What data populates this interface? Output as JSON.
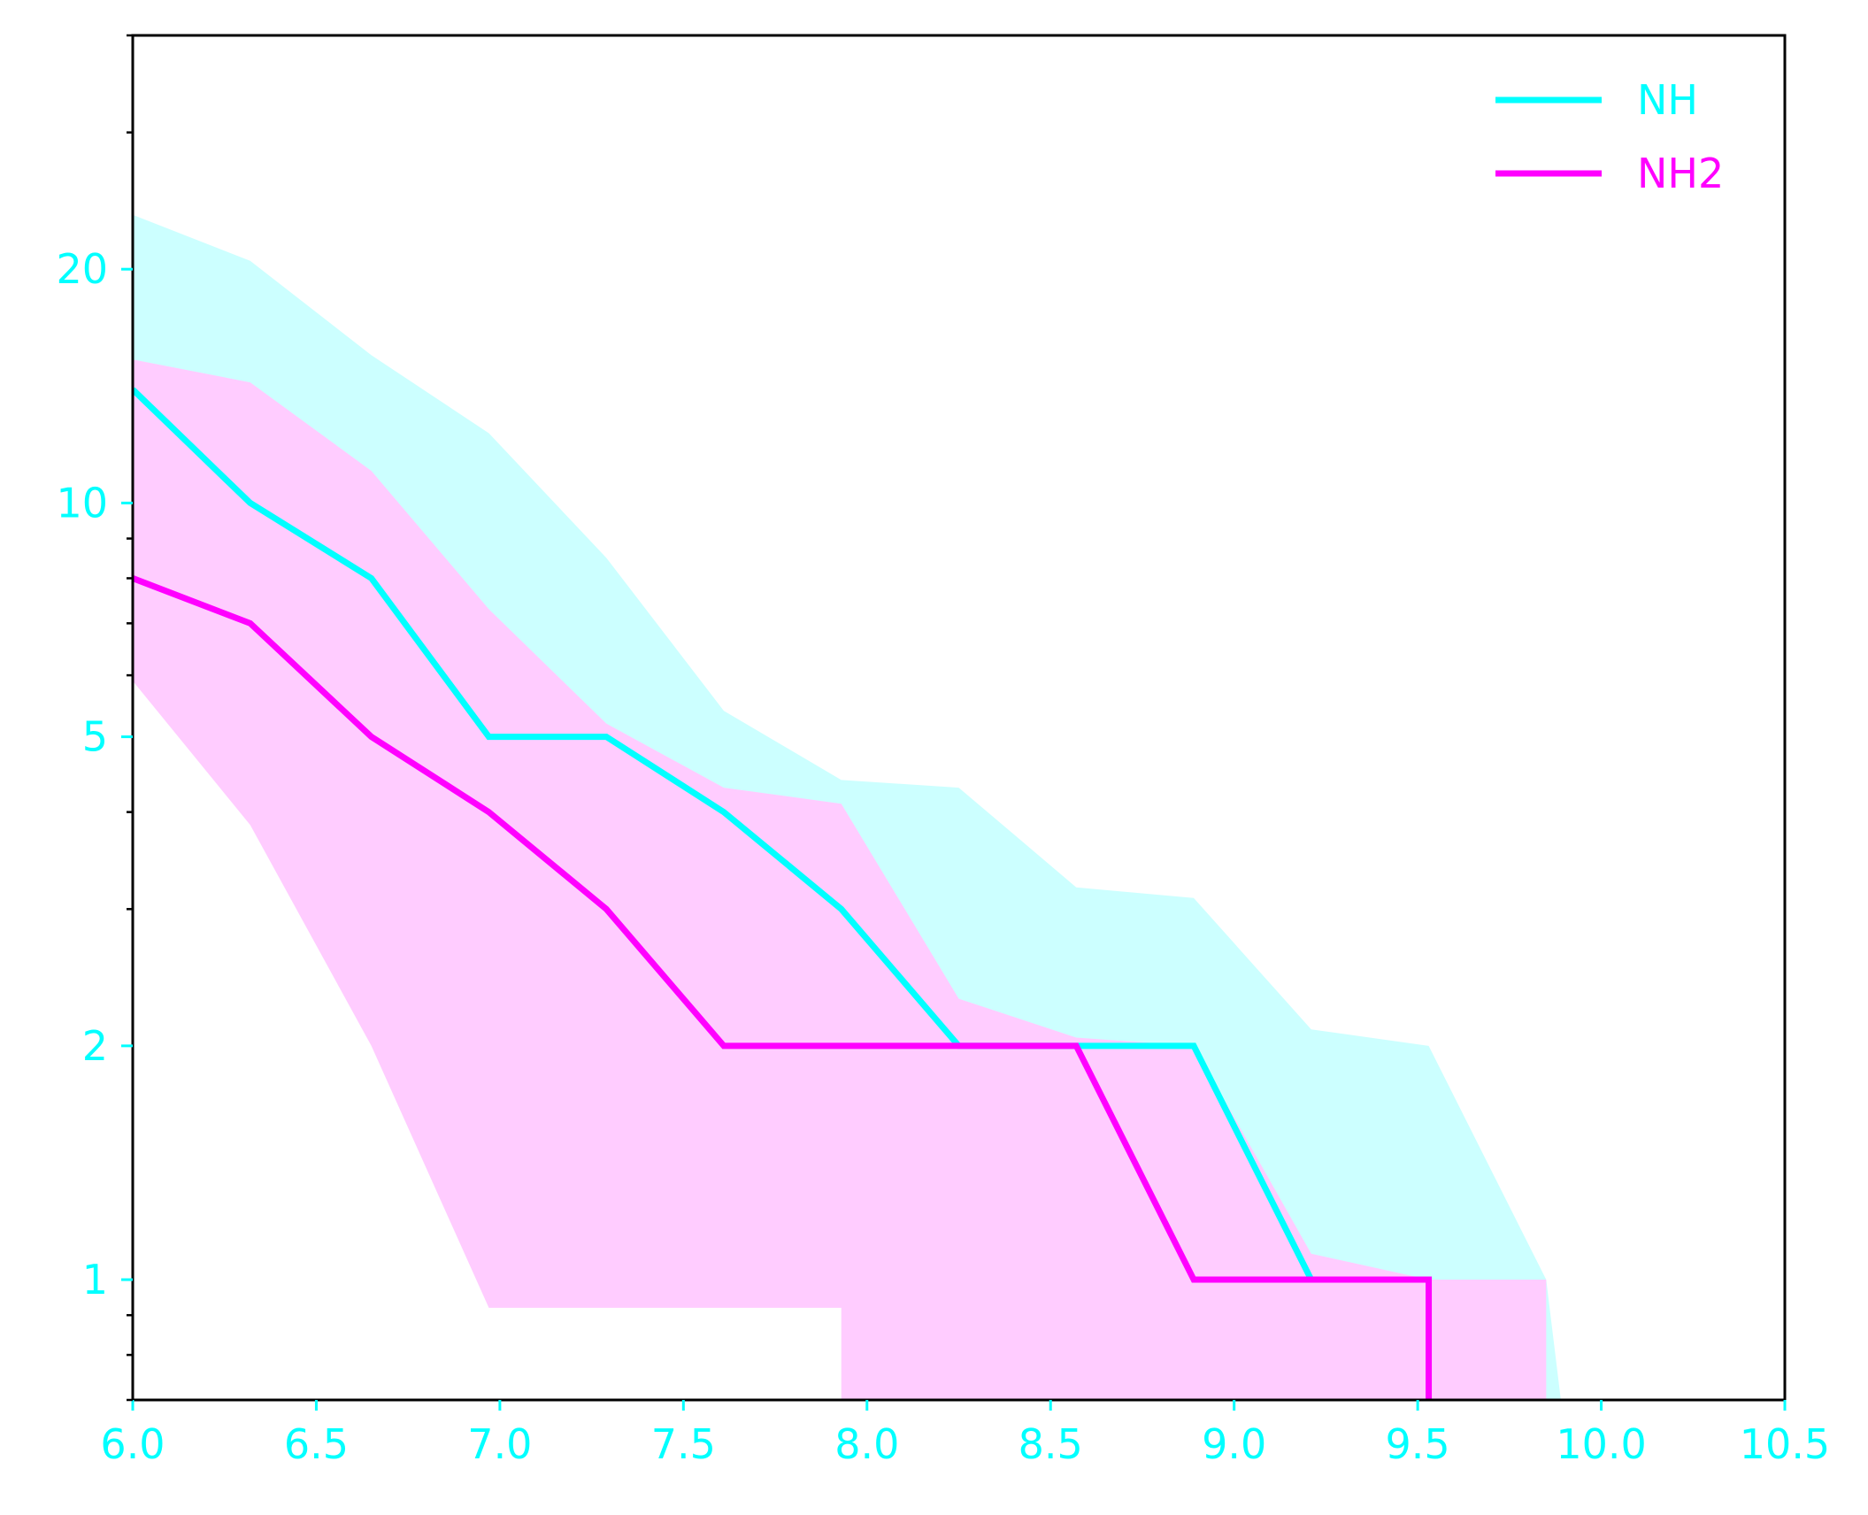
{
  "chart_data": {
    "type": "line",
    "title": "",
    "xlabel": "",
    "ylabel": "",
    "xlim": [
      6.0,
      10.5
    ],
    "ylim": [
      0.7,
      40
    ],
    "y_scale": "log",
    "grid": false,
    "legend_position": "top-right",
    "x_ticks": [
      6.0,
      6.5,
      7.0,
      7.5,
      8.0,
      8.5,
      9.0,
      9.5,
      10.0,
      10.5
    ],
    "x_tick_labels": [
      "6.0",
      "6.5",
      "7.0",
      "7.5",
      "8.0",
      "8.5",
      "9.0",
      "9.5",
      "10.0",
      "10.5"
    ],
    "y_ticks": [
      1,
      2,
      5,
      10,
      20
    ],
    "y_tick_labels": [
      "1",
      "2",
      "5",
      "10",
      "20"
    ],
    "y_minor_ticks": [
      0.7,
      0.8,
      0.9,
      3,
      4,
      6,
      7,
      8,
      9,
      30,
      40
    ],
    "tick_label_color": "#00ffff",
    "series": [
      {
        "name": "NH",
        "color": "#00ffff",
        "line": [
          [
            6.0,
            14
          ],
          [
            6.32,
            10
          ],
          [
            6.65,
            8
          ],
          [
            6.97,
            5
          ],
          [
            7.29,
            5
          ],
          [
            7.61,
            4
          ],
          [
            7.93,
            3
          ],
          [
            8.25,
            2
          ],
          [
            8.57,
            2
          ],
          [
            8.89,
            2
          ],
          [
            9.21,
            1
          ]
        ],
        "band_upper": [
          [
            6.0,
            23.5
          ],
          [
            6.32,
            20.5
          ],
          [
            6.65,
            15.5
          ],
          [
            6.97,
            12.3
          ],
          [
            7.29,
            8.5
          ],
          [
            7.61,
            5.4
          ],
          [
            7.93,
            4.4
          ],
          [
            8.25,
            4.3
          ],
          [
            8.57,
            3.2
          ],
          [
            8.89,
            3.1
          ],
          [
            9.21,
            2.1
          ],
          [
            9.53,
            2.0
          ],
          [
            9.85,
            1.0
          ],
          [
            9.89,
            0.7
          ]
        ],
        "band_lower": [
          [
            6.0,
            15.3
          ],
          [
            6.32,
            14.3
          ],
          [
            6.65,
            11.0
          ],
          [
            6.97,
            7.3
          ],
          [
            7.29,
            5.2
          ],
          [
            7.61,
            4.3
          ],
          [
            7.93,
            4.1
          ],
          [
            8.25,
            2.3
          ],
          [
            8.57,
            2.05
          ],
          [
            8.89,
            2.0
          ],
          [
            9.21,
            1.08
          ],
          [
            9.53,
            1.0
          ],
          [
            9.85,
            1.0
          ],
          [
            9.85,
            0.7
          ]
        ]
      },
      {
        "name": "NH2",
        "color": "#ff00ff",
        "line": [
          [
            6.0,
            8
          ],
          [
            6.32,
            7
          ],
          [
            6.65,
            5
          ],
          [
            6.97,
            4
          ],
          [
            7.29,
            3
          ],
          [
            7.61,
            2
          ],
          [
            7.93,
            2
          ],
          [
            8.25,
            2
          ],
          [
            8.57,
            2
          ],
          [
            8.89,
            1
          ],
          [
            9.21,
            1
          ],
          [
            9.53,
            1
          ],
          [
            9.53,
            0.7
          ]
        ],
        "band_upper": [
          [
            6.0,
            15.3
          ],
          [
            6.32,
            14.3
          ],
          [
            6.65,
            11.0
          ],
          [
            6.97,
            7.3
          ],
          [
            7.29,
            5.2
          ],
          [
            7.61,
            4.3
          ],
          [
            7.93,
            4.1
          ],
          [
            8.25,
            2.3
          ],
          [
            8.57,
            2.05
          ],
          [
            8.89,
            2.0
          ],
          [
            9.21,
            1.08
          ],
          [
            9.53,
            1.0
          ],
          [
            9.85,
            1.0
          ],
          [
            9.85,
            0.7
          ]
        ],
        "band_lower": [
          [
            6.0,
            5.9
          ],
          [
            6.32,
            3.85
          ],
          [
            6.65,
            2.0
          ],
          [
            6.97,
            0.92
          ],
          [
            7.29,
            0.92
          ],
          [
            7.61,
            0.92
          ],
          [
            7.93,
            0.92
          ],
          [
            7.93,
            0.7
          ],
          [
            9.85,
            0.7
          ]
        ]
      }
    ]
  }
}
